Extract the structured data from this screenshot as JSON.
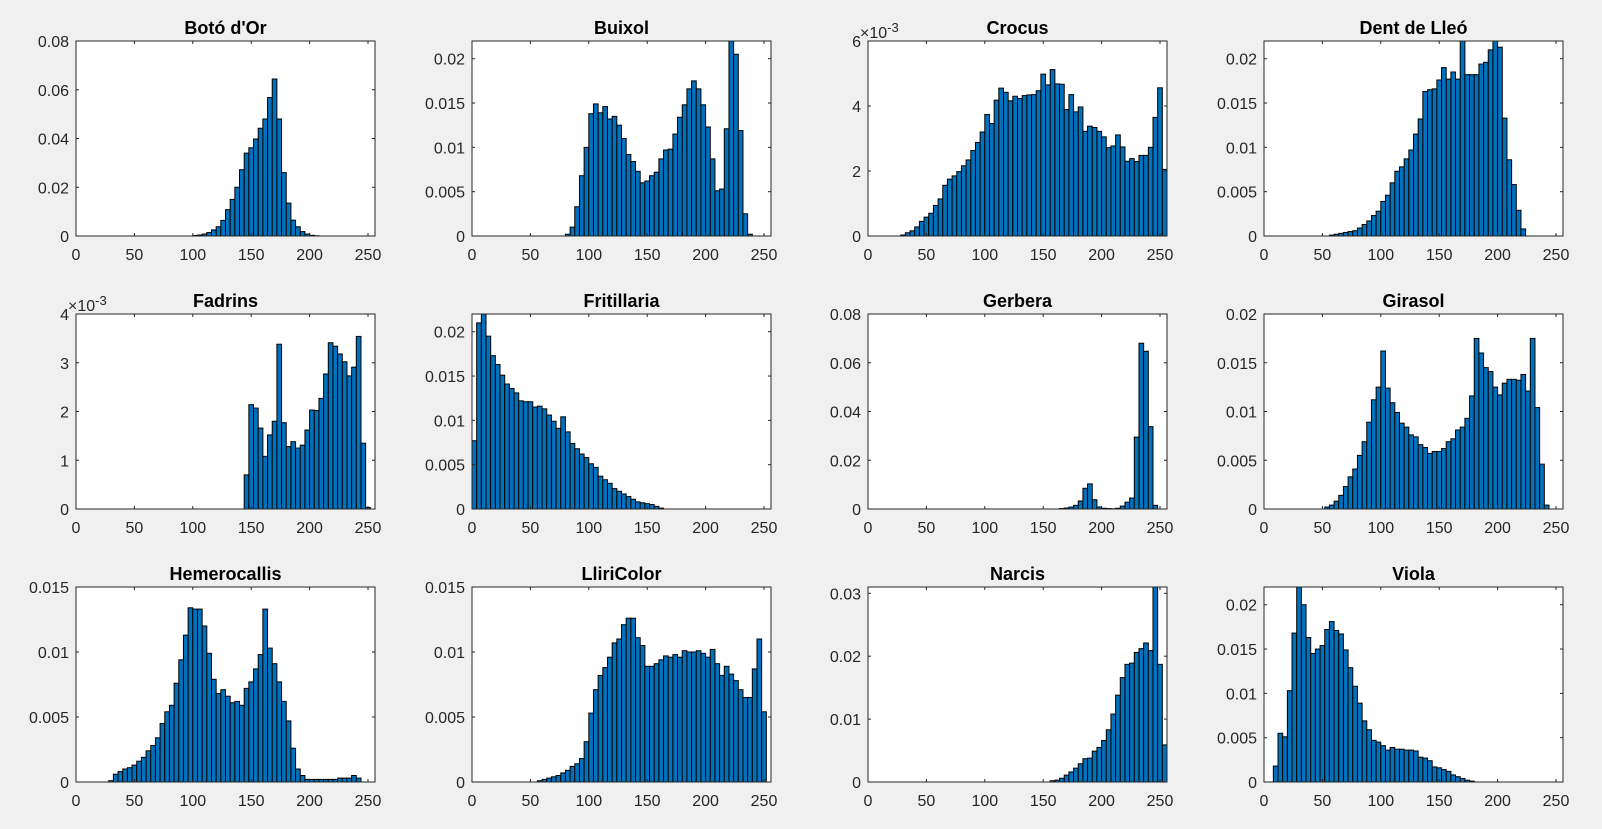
{
  "colors": {
    "bar_fill": "#0072bd",
    "bar_edge": "#000000",
    "axes_bg": "#ffffff",
    "figure_bg": "#f0f0f0"
  },
  "chart_data": [
    {
      "type": "bar",
      "title": "Botó d'Or",
      "xlim": [
        0,
        256
      ],
      "ylim": [
        0,
        0.08
      ],
      "xticks": [
        0,
        50,
        100,
        150,
        200,
        250
      ],
      "yticks": [
        0,
        0.02,
        0.04,
        0.06,
        0.08
      ],
      "yticklabels": [
        "0",
        "0.02",
        "0.04",
        "0.06",
        "0.08"
      ],
      "yscale_label": "",
      "bin_start": 0,
      "bin_width": 4,
      "values": [
        0,
        0,
        0,
        0,
        0,
        0,
        0,
        0,
        0,
        0,
        0,
        0,
        0,
        0,
        0,
        0,
        0,
        0,
        0,
        0,
        0,
        0,
        0,
        0,
        0,
        0.0002,
        0.0004,
        0.0008,
        0.0014,
        0.0025,
        0.0038,
        0.0064,
        0.0108,
        0.015,
        0.02,
        0.0272,
        0.034,
        0.0362,
        0.0398,
        0.0442,
        0.048,
        0.0568,
        0.0644,
        0.048,
        0.026,
        0.0135,
        0.0065,
        0.0038,
        0.0018,
        0.0008,
        0.0003,
        0.0001,
        0,
        0,
        0,
        0,
        0,
        0,
        0,
        0,
        0,
        0,
        0,
        0
      ]
    },
    {
      "type": "bar",
      "title": "Buixol",
      "xlim": [
        0,
        256
      ],
      "ylim": [
        0,
        0.022
      ],
      "xticks": [
        0,
        50,
        100,
        150,
        200,
        250
      ],
      "yticks": [
        0,
        0.005,
        0.01,
        0.015,
        0.02
      ],
      "yticklabels": [
        "0",
        "0.005",
        "0.01",
        "0.015",
        "0.02"
      ],
      "yscale_label": "",
      "bin_start": 0,
      "bin_width": 4,
      "values": [
        0,
        0,
        0,
        0,
        0,
        0,
        0,
        0,
        0,
        0,
        0,
        0,
        0,
        0,
        0,
        0,
        0,
        0,
        0,
        0,
        0.0002,
        0.001,
        0.0033,
        0.0068,
        0.01,
        0.0138,
        0.0149,
        0.0139,
        0.0146,
        0.0132,
        0.0135,
        0.0125,
        0.011,
        0.0092,
        0.0084,
        0.0073,
        0.006,
        0.0062,
        0.0068,
        0.0072,
        0.0087,
        0.0097,
        0.0098,
        0.0115,
        0.0134,
        0.0148,
        0.0166,
        0.0175,
        0.0166,
        0.0148,
        0.0123,
        0.0087,
        0.0051,
        0.0053,
        0.0121,
        0.0226,
        0.0205,
        0.0119,
        0.0025,
        0.0002,
        0,
        0,
        0,
        0
      ]
    },
    {
      "type": "bar",
      "title": "Crocus",
      "xlim": [
        0,
        256
      ],
      "ylim": [
        0,
        0.006
      ],
      "xticks": [
        0,
        50,
        100,
        150,
        200,
        250
      ],
      "yticks": [
        0,
        0.002,
        0.004,
        0.006
      ],
      "yticklabels": [
        "0",
        "2",
        "4",
        "6"
      ],
      "yscale_label": "×10^-3",
      "bin_start": 0,
      "bin_width": 4,
      "values": [
        0,
        0,
        0,
        0,
        0,
        0,
        0,
        3e-05,
        0.0001,
        0.00016,
        0.00028,
        0.00045,
        0.00058,
        0.0007,
        0.00094,
        0.00114,
        0.00156,
        0.00175,
        0.00185,
        0.00198,
        0.00216,
        0.00234,
        0.00263,
        0.00288,
        0.0032,
        0.00374,
        0.00346,
        0.00418,
        0.00455,
        0.00442,
        0.00416,
        0.0043,
        0.00423,
        0.00432,
        0.00434,
        0.00435,
        0.00447,
        0.00498,
        0.00465,
        0.00512,
        0.00468,
        0.00467,
        0.00389,
        0.00435,
        0.00382,
        0.00397,
        0.00322,
        0.00338,
        0.00334,
        0.00322,
        0.00305,
        0.00272,
        0.00277,
        0.00311,
        0.00274,
        0.0023,
        0.00238,
        0.00229,
        0.00248,
        0.00248,
        0.00273,
        0.00365,
        0.00456,
        0.00205
      ]
    },
    {
      "type": "bar",
      "title": "Dent de Lleó",
      "xlim": [
        0,
        256
      ],
      "ylim": [
        0,
        0.022
      ],
      "xticks": [
        0,
        50,
        100,
        150,
        200,
        250
      ],
      "yticks": [
        0,
        0.005,
        0.01,
        0.015,
        0.02
      ],
      "yticklabels": [
        "0",
        "0.005",
        "0.01",
        "0.015",
        "0.02"
      ],
      "yscale_label": "",
      "bin_start": 0,
      "bin_width": 4,
      "values": [
        0,
        0,
        0,
        0,
        0,
        0,
        0,
        0,
        0,
        0,
        0,
        0,
        0,
        0,
        0.0001,
        0.0002,
        0.0003,
        0.0004,
        0.0005,
        0.0006,
        0.0009,
        0.0013,
        0.0017,
        0.0023,
        0.0028,
        0.0039,
        0.0046,
        0.006,
        0.0073,
        0.0078,
        0.0087,
        0.0097,
        0.0115,
        0.0132,
        0.0163,
        0.0165,
        0.0166,
        0.0176,
        0.019,
        0.0177,
        0.0185,
        0.0177,
        0.0226,
        0.0182,
        0.0182,
        0.0182,
        0.0194,
        0.0196,
        0.021,
        0.0226,
        0.0213,
        0.0133,
        0.0086,
        0.0058,
        0.0029,
        0.0008,
        0,
        0,
        0,
        0,
        0,
        0,
        0,
        0
      ]
    },
    {
      "type": "bar",
      "title": "Fadrins",
      "xlim": [
        0,
        256
      ],
      "ylim": [
        0,
        0.004
      ],
      "xticks": [
        0,
        50,
        100,
        150,
        200,
        250
      ],
      "yticks": [
        0,
        0.001,
        0.002,
        0.003,
        0.004
      ],
      "yticklabels": [
        "0",
        "1",
        "2",
        "3",
        "4"
      ],
      "yscale_label": "×10^-3",
      "bin_start": 0,
      "bin_width": 4,
      "values": [
        0,
        0,
        0,
        0,
        0,
        0,
        0,
        0,
        0,
        0,
        0,
        0,
        0,
        0,
        0,
        0,
        0,
        0,
        0,
        0,
        0,
        0,
        0,
        0,
        0,
        0,
        0,
        0,
        0,
        0,
        0,
        0,
        0,
        0,
        0,
        0,
        0.0007,
        0.00214,
        0.00207,
        0.00166,
        0.00108,
        0.00152,
        0.0018,
        0.00338,
        0.00177,
        0.00128,
        0.00138,
        0.00125,
        0.00131,
        0.00162,
        0.00203,
        0.00202,
        0.00227,
        0.00277,
        0.00341,
        0.00334,
        0.00318,
        0.00302,
        0.00273,
        0.00291,
        0.00354,
        0.00135,
        3e-05,
        0
      ]
    },
    {
      "type": "bar",
      "title": "Fritillaria",
      "xlim": [
        0,
        256
      ],
      "ylim": [
        0,
        0.022
      ],
      "xticks": [
        0,
        50,
        100,
        150,
        200,
        250
      ],
      "yticks": [
        0,
        0.005,
        0.01,
        0.015,
        0.02
      ],
      "yticklabels": [
        "0",
        "0.005",
        "0.01",
        "0.015",
        "0.02"
      ],
      "yscale_label": "",
      "bin_start": 0,
      "bin_width": 4,
      "values": [
        0.0077,
        0.021,
        0.0224,
        0.0195,
        0.0173,
        0.0163,
        0.0151,
        0.0141,
        0.0136,
        0.0131,
        0.0122,
        0.0121,
        0.0121,
        0.0115,
        0.0116,
        0.0113,
        0.0106,
        0.0099,
        0.0091,
        0.0104,
        0.0087,
        0.0074,
        0.0068,
        0.0062,
        0.0058,
        0.0051,
        0.0047,
        0.0037,
        0.0033,
        0.0029,
        0.0023,
        0.002,
        0.0017,
        0.0014,
        0.0011,
        0.0008,
        0.0007,
        0.0006,
        0.0005,
        0.0003,
        0.0001,
        0,
        0,
        0,
        0,
        0,
        0,
        0,
        0,
        0,
        0,
        0,
        0,
        0,
        0,
        0,
        0,
        0,
        0,
        0,
        0,
        0,
        0,
        0
      ]
    },
    {
      "type": "bar",
      "title": "Gerbera",
      "xlim": [
        0,
        256
      ],
      "ylim": [
        0,
        0.08
      ],
      "xticks": [
        0,
        50,
        100,
        150,
        200,
        250
      ],
      "yticks": [
        0,
        0.02,
        0.04,
        0.06,
        0.08
      ],
      "yticklabels": [
        "0",
        "0.02",
        "0.04",
        "0.06",
        "0.08"
      ],
      "yscale_label": "",
      "bin_start": 0,
      "bin_width": 4,
      "values": [
        0,
        0,
        0,
        0,
        0,
        0,
        0,
        0,
        0,
        0,
        0,
        0,
        0,
        0,
        0,
        0,
        0,
        0,
        0,
        0,
        0,
        0,
        0,
        0,
        0,
        0,
        0,
        0,
        0,
        0,
        0,
        0,
        0,
        0,
        0,
        0,
        0,
        0,
        0,
        0,
        0,
        0.0002,
        0.0004,
        0.0008,
        0.0015,
        0.0033,
        0.0085,
        0.0103,
        0.0038,
        0.0008,
        0.0003,
        0.0002,
        0.0001,
        0.0003,
        0.0012,
        0.0028,
        0.0045,
        0.0295,
        0.068,
        0.0647,
        0.0338,
        0.0015,
        0,
        0
      ]
    },
    {
      "type": "bar",
      "title": "Girasol",
      "xlim": [
        0,
        256
      ],
      "ylim": [
        0,
        0.02
      ],
      "xticks": [
        0,
        50,
        100,
        150,
        200,
        250
      ],
      "yticks": [
        0,
        0.005,
        0.01,
        0.015,
        0.02
      ],
      "yticklabels": [
        "0",
        "0.005",
        "0.01",
        "0.015",
        "0.02"
      ],
      "yscale_label": "",
      "bin_start": 0,
      "bin_width": 4,
      "values": [
        0,
        0,
        0,
        0,
        0,
        0,
        0,
        0,
        0,
        0,
        0,
        0,
        0,
        0.0002,
        0.0004,
        0.0008,
        0.0014,
        0.0023,
        0.0033,
        0.0041,
        0.0055,
        0.0069,
        0.0089,
        0.0112,
        0.0125,
        0.0162,
        0.0124,
        0.0109,
        0.0099,
        0.0088,
        0.0084,
        0.0076,
        0.0074,
        0.0066,
        0.0063,
        0.0057,
        0.0059,
        0.0059,
        0.0062,
        0.0069,
        0.0072,
        0.0081,
        0.0084,
        0.0093,
        0.0116,
        0.0175,
        0.016,
        0.0145,
        0.0141,
        0.0125,
        0.0117,
        0.0129,
        0.0133,
        0.0133,
        0.0132,
        0.0138,
        0.0121,
        0.0175,
        0.0104,
        0.0046,
        0.0004,
        0,
        0,
        0
      ]
    },
    {
      "type": "bar",
      "title": "Hemerocallis",
      "xlim": [
        0,
        256
      ],
      "ylim": [
        0,
        0.015
      ],
      "xticks": [
        0,
        50,
        100,
        150,
        200,
        250
      ],
      "yticks": [
        0,
        0.005,
        0.01,
        0.015
      ],
      "yticklabels": [
        "0",
        "0.005",
        "0.01",
        "0.015"
      ],
      "yscale_label": "",
      "bin_start": 0,
      "bin_width": 4,
      "values": [
        0,
        0,
        0,
        0,
        0,
        0,
        0,
        0.0001,
        0.0006,
        0.0008,
        0.001,
        0.0011,
        0.0013,
        0.0016,
        0.0019,
        0.0024,
        0.0028,
        0.0034,
        0.0045,
        0.0054,
        0.0059,
        0.0076,
        0.0094,
        0.0113,
        0.0134,
        0.0133,
        0.0133,
        0.012,
        0.0099,
        0.0079,
        0.0068,
        0.0071,
        0.0066,
        0.0061,
        0.0062,
        0.0059,
        0.0072,
        0.0077,
        0.0087,
        0.0098,
        0.0133,
        0.0103,
        0.0091,
        0.0077,
        0.0062,
        0.0047,
        0.0026,
        0.001,
        0.0005,
        0.0002,
        0.0002,
        0.0002,
        0.0002,
        0.0002,
        0.0002,
        0.0002,
        0.0003,
        0.0003,
        0.0003,
        0.0005,
        0.0003,
        0,
        0,
        0
      ]
    },
    {
      "type": "bar",
      "title": "LliriColor",
      "xlim": [
        0,
        256
      ],
      "ylim": [
        0,
        0.015
      ],
      "xticks": [
        0,
        50,
        100,
        150,
        200,
        250
      ],
      "yticks": [
        0,
        0.005,
        0.01,
        0.015
      ],
      "yticklabels": [
        "0",
        "0.005",
        "0.01",
        "0.015"
      ],
      "yscale_label": "",
      "bin_start": 0,
      "bin_width": 4,
      "values": [
        0,
        0,
        0,
        0,
        0,
        0,
        0,
        0,
        0,
        0,
        0,
        0,
        0,
        0,
        0.0001,
        0.0002,
        0.0003,
        0.0004,
        0.0005,
        0.0007,
        0.0009,
        0.0012,
        0.0014,
        0.0018,
        0.0031,
        0.0053,
        0.0071,
        0.0082,
        0.0088,
        0.0096,
        0.0107,
        0.011,
        0.0121,
        0.0126,
        0.0126,
        0.0111,
        0.0105,
        0.0089,
        0.0089,
        0.0091,
        0.0094,
        0.0097,
        0.0096,
        0.0098,
        0.0096,
        0.0101,
        0.01,
        0.01,
        0.0101,
        0.0099,
        0.0096,
        0.0102,
        0.0091,
        0.0082,
        0.0089,
        0.0083,
        0.0078,
        0.0071,
        0.0065,
        0.0065,
        0.0087,
        0.011,
        0.0054,
        0
      ]
    },
    {
      "type": "bar",
      "title": "Narcis",
      "xlim": [
        0,
        256
      ],
      "ylim": [
        0,
        0.031
      ],
      "xticks": [
        0,
        50,
        100,
        150,
        200,
        250
      ],
      "yticks": [
        0,
        0.01,
        0.02,
        0.03
      ],
      "yticklabels": [
        "0",
        "0.01",
        "0.02",
        "0.03"
      ],
      "yscale_label": "",
      "bin_start": 0,
      "bin_width": 4,
      "values": [
        0,
        0,
        0,
        0,
        0,
        0,
        0,
        0,
        0,
        0,
        0,
        0,
        0,
        0,
        0,
        0,
        0,
        0,
        0,
        0,
        0,
        0,
        0,
        0,
        0,
        0,
        0,
        0,
        0,
        0,
        0,
        0,
        0,
        0,
        0,
        0,
        0,
        0,
        0,
        0.0002,
        0.0003,
        0.0006,
        0.0011,
        0.0016,
        0.0022,
        0.0029,
        0.0037,
        0.0038,
        0.0049,
        0.0055,
        0.0066,
        0.0083,
        0.0108,
        0.0138,
        0.0166,
        0.0187,
        0.0189,
        0.0206,
        0.0212,
        0.0221,
        0.0209,
        0.031,
        0.0187,
        0.0059
      ]
    },
    {
      "type": "bar",
      "title": "Viola",
      "xlim": [
        0,
        256
      ],
      "ylim": [
        0,
        0.022
      ],
      "xticks": [
        0,
        50,
        100,
        150,
        200,
        250
      ],
      "yticks": [
        0,
        0.005,
        0.01,
        0.015,
        0.02
      ],
      "yticklabels": [
        "0",
        "0.005",
        "0.01",
        "0.015",
        "0.02"
      ],
      "yscale_label": "",
      "bin_start": 0,
      "bin_width": 4,
      "values": [
        0,
        0,
        0.0018,
        0.0055,
        0.0051,
        0.0103,
        0.0168,
        0.0226,
        0.02,
        0.0163,
        0.0145,
        0.015,
        0.0154,
        0.0172,
        0.0181,
        0.0171,
        0.0167,
        0.0149,
        0.0129,
        0.0108,
        0.0089,
        0.0069,
        0.0059,
        0.0047,
        0.0045,
        0.0041,
        0.0036,
        0.0039,
        0.0037,
        0.0037,
        0.0036,
        0.0036,
        0.0035,
        0.0028,
        0.0027,
        0.0024,
        0.0017,
        0.0016,
        0.0014,
        0.0012,
        0.0008,
        0.0006,
        0.0004,
        0.0002,
        0.0001,
        0,
        0,
        0,
        0,
        0,
        0,
        0,
        0,
        0,
        0,
        0,
        0,
        0,
        0,
        0,
        0,
        0,
        0,
        0
      ]
    }
  ]
}
